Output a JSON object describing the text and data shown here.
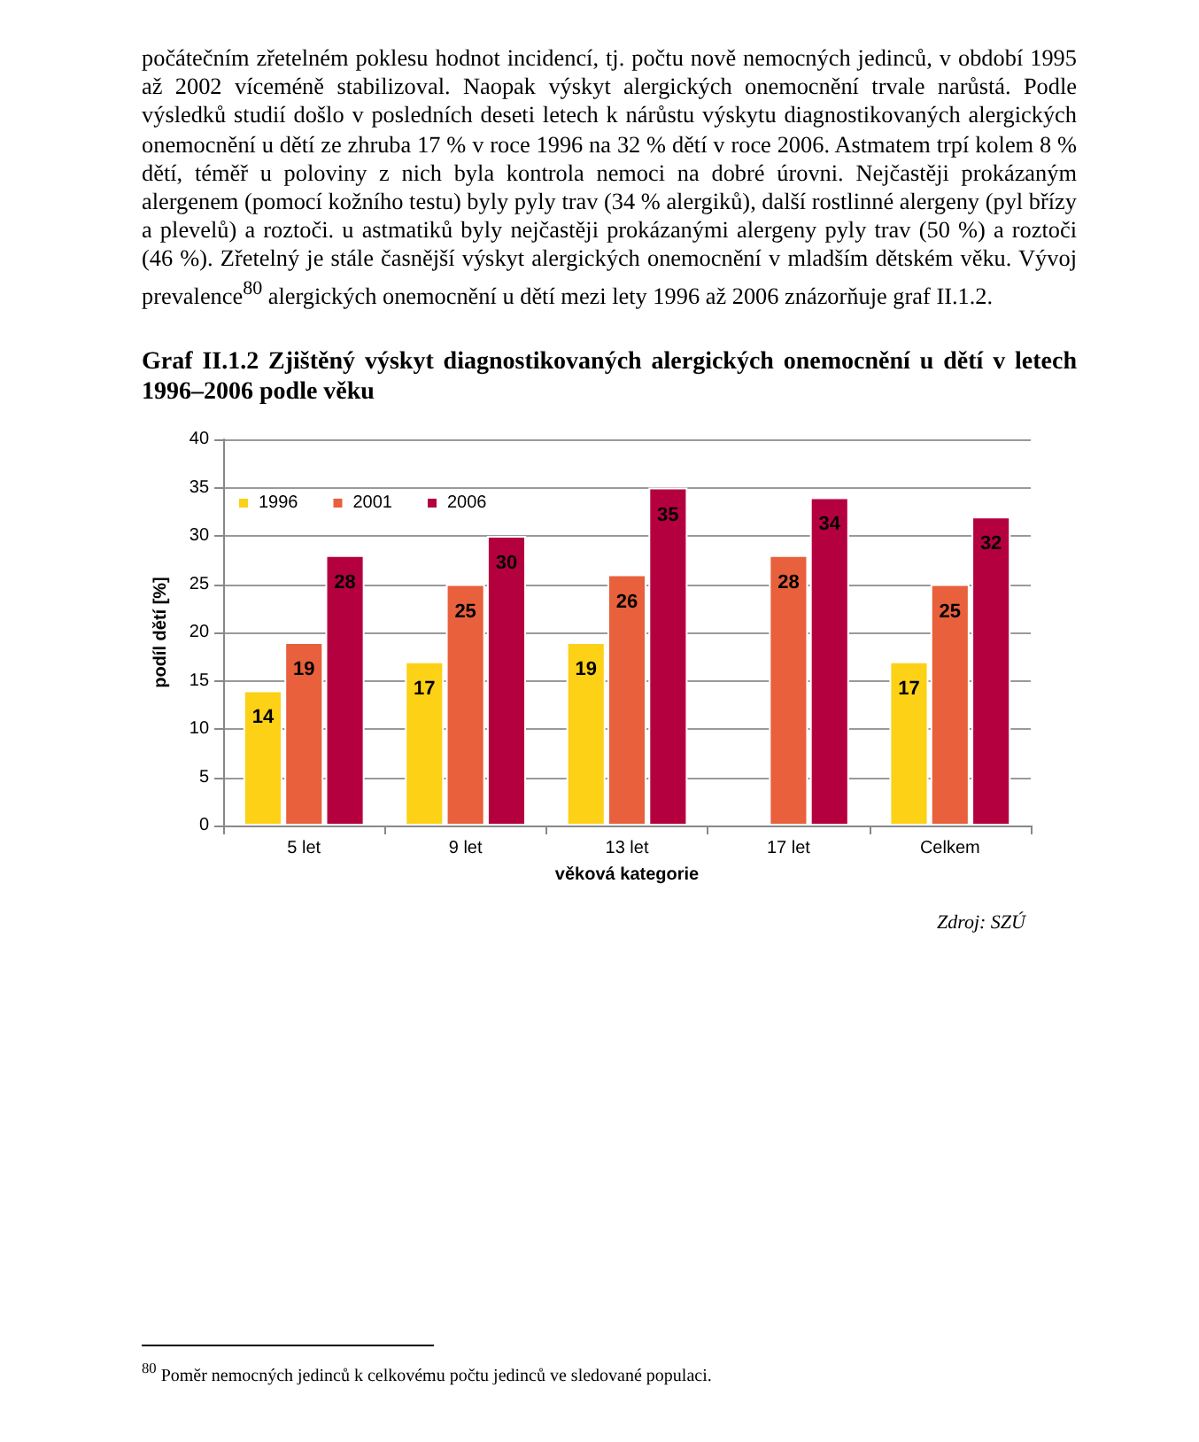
{
  "chart_data": {
    "type": "bar",
    "title": "Graf II.1.2 Zjištěný výskyt diagnostikovaných alergických onemocnění u dětí v letech 1996–2006 podle věku",
    "xlabel": "věková kategorie",
    "ylabel": "podíl dětí [%]",
    "categories": [
      "5 let",
      "9 let",
      "13 let",
      "17 let",
      "Celkem"
    ],
    "series": [
      {
        "name": "1996",
        "color": "#fcd116",
        "values": [
          14,
          17,
          19,
          null,
          17
        ]
      },
      {
        "name": "2001",
        "color": "#e8603c",
        "values": [
          19,
          25,
          26,
          28,
          25
        ]
      },
      {
        "name": "2006",
        "color": "#b5003f",
        "values": [
          28,
          30,
          35,
          34,
          32
        ]
      }
    ],
    "ylim": [
      0,
      40
    ],
    "yticks": [
      0,
      5,
      10,
      15,
      20,
      25,
      30,
      35,
      40
    ],
    "grid": "y",
    "legend": "top left",
    "data_labels": true,
    "annotations": [
      "počátečním zřetelném poklesu hodnot incidencí, tj. počtu nově nemocných jedinců, v období 1995 až 2002 víceméně stabilizoval. Naopak výskyt alergických onemocnění trvale narůstá. Podle výsledků studií došlo v posledních deseti letech k nárůstu výskytu diagnostikovaných alergických onemocnění u dětí ze zhruba 17 % v roce 1996 na 32 % dětí v roce 2006. Astmatem trpí kolem 8 % dětí, téměř u poloviny z nich byla kontrola nemoci na dobré úrovni. Nejčastěji prokázaným alergenem (pomocí kožního testu) byly pyly trav (34 % alergiků), další rostlinné alergeny (pyl břízy a plevelů) a roztoči. u astmatiků byly nejčastěji prokázanými alergeny pyly trav (50 %) a roztoči (46 %). Zřetelný je stále časnější výskyt alergických onemocnění v mladším dětském věku. Vývoj prevalence$^{80}$ alergických onemocnění u dětí mezi lety 1996 až 2006 znázorňuje graf II.1.2.",
      "Zdroj: SZÚ",
      "$^{80}$ Poměr nemocných jedinců k celkovému počtu jedinců ve sledované populaci."
    ]
  }
}
